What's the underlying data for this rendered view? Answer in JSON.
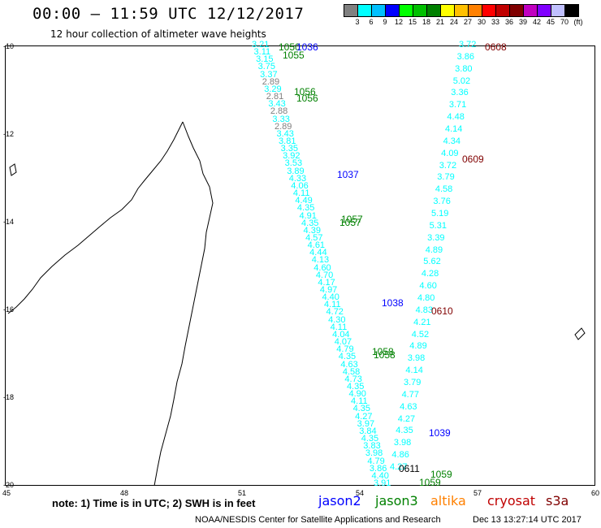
{
  "header": {
    "title": "00:00 – 11:59 UTC 12/12/2017",
    "subtitle": "12 hour collection of altimeter wave heights"
  },
  "colorbar": {
    "colors": [
      "#808080",
      "#00ffff",
      "#00c0ff",
      "#0000ff",
      "#00ff00",
      "#00c000",
      "#008000",
      "#ffff00",
      "#ffc000",
      "#ff8000",
      "#ff0000",
      "#c00000",
      "#800000",
      "#c000c0",
      "#8000ff",
      "#c0c0ff",
      "#000000"
    ],
    "labels": [
      "3",
      "6",
      "9",
      "12",
      "15",
      "18",
      "21",
      "24",
      "27",
      "30",
      "33",
      "36",
      "39",
      "42",
      "45",
      "70",
      "(ft)"
    ]
  },
  "axes": {
    "lat_labels": [
      "-10",
      "-12",
      "-14",
      "-16",
      "-18",
      "-20"
    ],
    "lon_labels": [
      "45",
      "48",
      "51",
      "54",
      "57",
      "60"
    ]
  },
  "tracks": {
    "left_track": [
      "3.21",
      "3.11",
      "3.15",
      "3.75",
      "3.37",
      "2.89",
      "3.29",
      "2.81",
      "3.43",
      "2.88",
      "3.33",
      "2.89",
      "3.43",
      "3.81",
      "3.35",
      "3.92",
      "3.53",
      "3.89",
      "4.33",
      "4.06",
      "4.11",
      "4.49",
      "4.35",
      "4.91",
      "4.35",
      "4.39",
      "4.57",
      "4.61",
      "4.44",
      "4.13",
      "4.60",
      "4.70",
      "4.17",
      "4.97",
      "4.40",
      "4.11",
      "4.72",
      "4.30",
      "4.11",
      "4.04",
      "4.07",
      "4.79",
      "4.35",
      "4.63",
      "4.58",
      "4.73",
      "4.35",
      "4.90",
      "4.11",
      "4.35",
      "4.27",
      "3.97",
      "3.84",
      "4.35",
      "3.83",
      "3.98",
      "4.79",
      "3.86",
      "4.40",
      "3.91"
    ],
    "left_track_colors": [
      "#00ffff",
      "#00ffff",
      "#00ffff",
      "#00ffff",
      "#00ffff",
      "#808080",
      "#00ffff",
      "#808080",
      "#00ffff",
      "#808080",
      "#00ffff",
      "#808080",
      "#00ffff",
      "#00ffff",
      "#00ffff",
      "#00ffff",
      "#00ffff",
      "#00ffff",
      "#00ffff",
      "#00ffff",
      "#00ffff",
      "#00ffff",
      "#00ffff",
      "#00ffff",
      "#00ffff",
      "#00ffff",
      "#00ffff",
      "#00ffff",
      "#00ffff",
      "#00ffff",
      "#00ffff",
      "#00ffff",
      "#00ffff",
      "#00ffff",
      "#00ffff",
      "#00ffff",
      "#00ffff",
      "#00ffff",
      "#00ffff",
      "#00ffff",
      "#00ffff",
      "#00ffff",
      "#00ffff",
      "#00ffff",
      "#00ffff",
      "#00ffff",
      "#00ffff",
      "#00ffff",
      "#00ffff",
      "#00ffff",
      "#00ffff",
      "#00ffff",
      "#00ffff",
      "#00ffff",
      "#00ffff",
      "#00ffff",
      "#00ffff",
      "#00ffff",
      "#00ffff",
      "#00ffff"
    ],
    "right_track": [
      "3.72",
      "3.86",
      "3.80",
      "5.02",
      "3.36",
      "3.71",
      "4.48",
      "4.14",
      "4.34",
      "4.09",
      "3.72",
      "3.79",
      "4.58",
      "3.76",
      "5.19",
      "5.31",
      "3.39",
      "4.89",
      "5.62",
      "4.28",
      "4.60",
      "4.80",
      "4.83",
      "4.21",
      "4.52",
      "4.89",
      "3.98",
      "4.14",
      "3.79",
      "4.77",
      "4.63",
      "4.27",
      "4.35",
      "3.98",
      "4.86",
      "4.27"
    ]
  },
  "time_labels": [
    {
      "text": "1050",
      "color": "#008000"
    },
    {
      "text": "1036",
      "color": "#0000ff"
    },
    {
      "text": "1055",
      "color": "#008000"
    },
    {
      "text": "1056",
      "color": "#008000"
    },
    {
      "text": "1056",
      "color": "#008000"
    },
    {
      "text": "1037",
      "color": "#0000ff"
    },
    {
      "text": "1057",
      "color": "#008000"
    },
    {
      "text": "1057",
      "color": "#008000"
    },
    {
      "text": "1038",
      "color": "#0000ff"
    },
    {
      "text": "1058",
      "color": "#008000"
    },
    {
      "text": "1058",
      "color": "#008000"
    },
    {
      "text": "1039",
      "color": "#0000ff"
    },
    {
      "text": "1059",
      "color": "#008000"
    },
    {
      "text": "1059",
      "color": "#008000"
    },
    {
      "text": "0608",
      "color": "#800000"
    },
    {
      "text": "0609",
      "color": "#800000"
    },
    {
      "text": "0610",
      "color": "#800000"
    },
    {
      "text": "0611",
      "color": "#000000"
    }
  ],
  "footer": {
    "note": "note:  1) Time is in UTC;  2) SWH is in feet",
    "legend": [
      {
        "name": "jason2",
        "color": "#0000ff"
      },
      {
        "name": "jason3",
        "color": "#008000"
      },
      {
        "name": "altika",
        "color": "#ff8000"
      },
      {
        "name": "cryosat",
        "color": "#c00000"
      },
      {
        "name": "s3a",
        "color": "#800000"
      }
    ],
    "credit": "NOAA/NESDIS Center for Satellite Applications and Research",
    "stamp": "Dec 13 13:27:14 UTC 2017"
  }
}
